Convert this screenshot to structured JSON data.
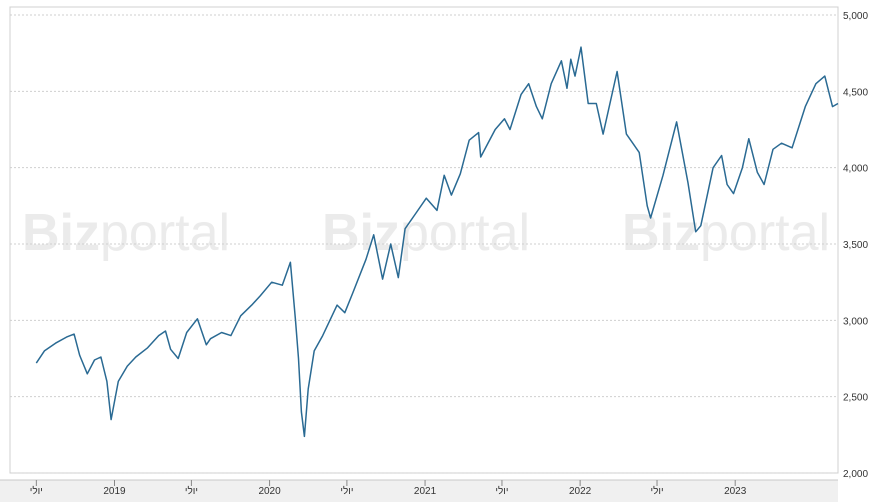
{
  "chart_data": {
    "type": "line",
    "title": "",
    "xlabel": "",
    "ylabel": "",
    "ylim": [
      2000,
      5000
    ],
    "xlim": [
      "2018-04-30",
      "2023-08-31"
    ],
    "y_ticks": [
      "5,000",
      "4,500",
      "4,000",
      "3,500",
      "3,000",
      "2,500",
      "2,000"
    ],
    "y_tick_values": [
      5000,
      4500,
      4000,
      3500,
      3000,
      2500,
      2000
    ],
    "x_ticks": [
      {
        "label": "יולי",
        "date": "2018-07-01"
      },
      {
        "label": "2019",
        "date": "2019-01-01"
      },
      {
        "label": "יולי",
        "date": "2019-07-01"
      },
      {
        "label": "2020",
        "date": "2020-01-01"
      },
      {
        "label": "יולי",
        "date": "2020-07-01"
      },
      {
        "label": "2021",
        "date": "2021-01-01"
      },
      {
        "label": "יולי",
        "date": "2021-07-01"
      },
      {
        "label": "2022",
        "date": "2022-01-01"
      },
      {
        "label": "יולי",
        "date": "2022-07-01"
      },
      {
        "label": "2023",
        "date": "2023-01-01"
      }
    ],
    "grid": true,
    "series_color": "#2a6a93",
    "series": [
      {
        "x": [
          "2018-07-01",
          "2018-07-20",
          "2018-08-15",
          "2018-09-10",
          "2018-09-28",
          "2018-10-11",
          "2018-10-29",
          "2018-11-15",
          "2018-11-30",
          "2018-12-14",
          "2018-12-24",
          "2019-01-10",
          "2019-01-31",
          "2019-02-20",
          "2019-03-20",
          "2019-04-15",
          "2019-05-01",
          "2019-05-13",
          "2019-05-31",
          "2019-06-20",
          "2019-07-15",
          "2019-08-05",
          "2019-08-15",
          "2019-09-10",
          "2019-10-02",
          "2019-10-25",
          "2019-11-20",
          "2019-12-10",
          "2020-01-06",
          "2020-01-31",
          "2020-02-19",
          "2020-03-02",
          "2020-03-09",
          "2020-03-16",
          "2020-03-23",
          "2020-04-01",
          "2020-04-15",
          "2020-05-05",
          "2020-06-08",
          "2020-06-26",
          "2020-07-15",
          "2020-08-15",
          "2020-09-02",
          "2020-09-23",
          "2020-10-12",
          "2020-10-30",
          "2020-11-15",
          "2020-12-10",
          "2021-01-04",
          "2021-01-29",
          "2021-02-15",
          "2021-03-04",
          "2021-03-25",
          "2021-04-15",
          "2021-05-07",
          "2021-05-12",
          "2021-06-15",
          "2021-07-07",
          "2021-07-20",
          "2021-08-15",
          "2021-09-02",
          "2021-09-20",
          "2021-10-04",
          "2021-10-25",
          "2021-11-18",
          "2021-12-01",
          "2021-12-10",
          "2021-12-20",
          "2022-01-03",
          "2022-01-20",
          "2022-02-08",
          "2022-02-24",
          "2022-03-29",
          "2022-04-20",
          "2022-05-20",
          "2022-06-08",
          "2022-06-16",
          "2022-07-15",
          "2022-08-16",
          "2022-09-12",
          "2022-09-30",
          "2022-10-12",
          "2022-11-10",
          "2022-11-30",
          "2022-12-13",
          "2022-12-28",
          "2023-01-18",
          "2023-02-02",
          "2023-02-22",
          "2023-03-10",
          "2023-03-31",
          "2023-04-20",
          "2023-05-15",
          "2023-06-15",
          "2023-07-10",
          "2023-07-31",
          "2023-08-18",
          "2023-08-31"
        ],
        "y": [
          2720,
          2800,
          2850,
          2890,
          2910,
          2770,
          2650,
          2740,
          2760,
          2600,
          2350,
          2600,
          2700,
          2760,
          2820,
          2900,
          2930,
          2810,
          2750,
          2920,
          3010,
          2840,
          2880,
          2920,
          2900,
          3030,
          3100,
          3160,
          3250,
          3230,
          3380,
          3000,
          2750,
          2400,
          2240,
          2550,
          2800,
          2900,
          3100,
          3050,
          3180,
          3400,
          3560,
          3270,
          3500,
          3280,
          3600,
          3700,
          3800,
          3720,
          3950,
          3820,
          3960,
          4180,
          4230,
          4070,
          4250,
          4320,
          4250,
          4480,
          4550,
          4400,
          4320,
          4550,
          4700,
          4520,
          4710,
          4600,
          4790,
          4420,
          4420,
          4220,
          4630,
          4220,
          4100,
          3750,
          3670,
          3950,
          4300,
          3900,
          3580,
          3620,
          4000,
          4080,
          3890,
          3830,
          4000,
          4190,
          3970,
          3890,
          4120,
          4160,
          4130,
          4400,
          4550,
          4600,
          4400,
          4420
        ]
      }
    ]
  },
  "watermark": {
    "bold_part": "Biz",
    "light_part": "portal"
  }
}
